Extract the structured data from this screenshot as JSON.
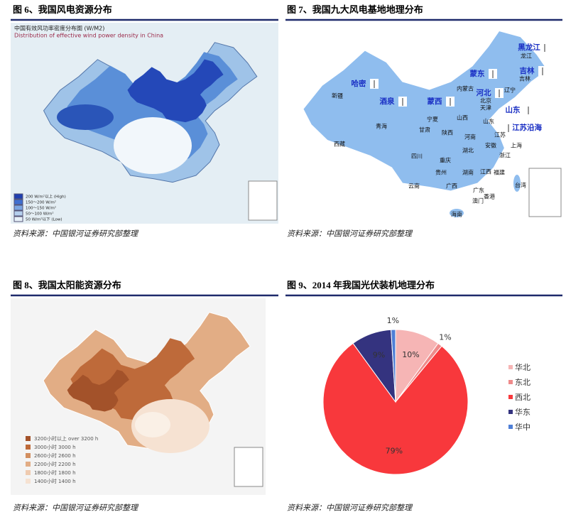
{
  "figures": [
    {
      "title": "图 6、我国风电资源分布",
      "source": "资料来源：中国银河证券研究部整理"
    },
    {
      "title": "图 7、我国九大风电基地地理分布",
      "source": "资料来源：中国银河证券研究部整理"
    },
    {
      "title": "图 8、我国太阳能资源分布",
      "source": "资料来源：中国银河证券研究部整理"
    }
  ],
  "wind_map": {
    "heading": "中国有效风功率密度分布图 (W/M2)",
    "subheading": "Distribution of effective wind power density in China",
    "legend": [
      "200 W/m²以上 (High)",
      "150～200 W/m²",
      "100～150 W/m²",
      "50～100 W/m²",
      "50 W/m²以下 (Low)"
    ]
  },
  "base_map": {
    "bases": [
      "黑龙江",
      "吉林",
      "蒙东",
      "哈密",
      "河北",
      "酒泉",
      "蒙西",
      "山东",
      "江苏沿海"
    ],
    "regions": [
      "新疆",
      "西藏",
      "青海",
      "甘肃",
      "宁夏",
      "内蒙古",
      "山西",
      "陕西",
      "河南",
      "湖北",
      "四川",
      "重庆",
      "贵州",
      "云南",
      "广西",
      "广东",
      "湖南",
      "江西",
      "福建",
      "浙江",
      "安徽",
      "江苏",
      "上海",
      "山东",
      "北京",
      "天津",
      "辽宁",
      "吉林",
      "龙江",
      "台湾",
      "香港",
      "澳门",
      "海南"
    ]
  },
  "solar_map": {
    "legend": [
      "3200小时以上  over 3200 h",
      "3000小时  3000 h",
      "2600小时  2600 h",
      "2200小时  2200 h",
      "1800小时  1800 h",
      "1400小时  1400 h"
    ]
  },
  "chart_data": {
    "type": "pie",
    "title": "图 9、2014 年我国光伏装机地理分布",
    "source": "资料来源：中国银河证券研究部整理",
    "categories": [
      "华北",
      "东北",
      "西北",
      "华东",
      "华中"
    ],
    "values": [
      10,
      1,
      79,
      9,
      1
    ],
    "value_labels": [
      "10%",
      "1%",
      "79%",
      "9%",
      "1%"
    ],
    "colors": [
      "#f6b5b5",
      "#ef8a8a",
      "#f8383c",
      "#34337f",
      "#4f7fd6"
    ]
  }
}
